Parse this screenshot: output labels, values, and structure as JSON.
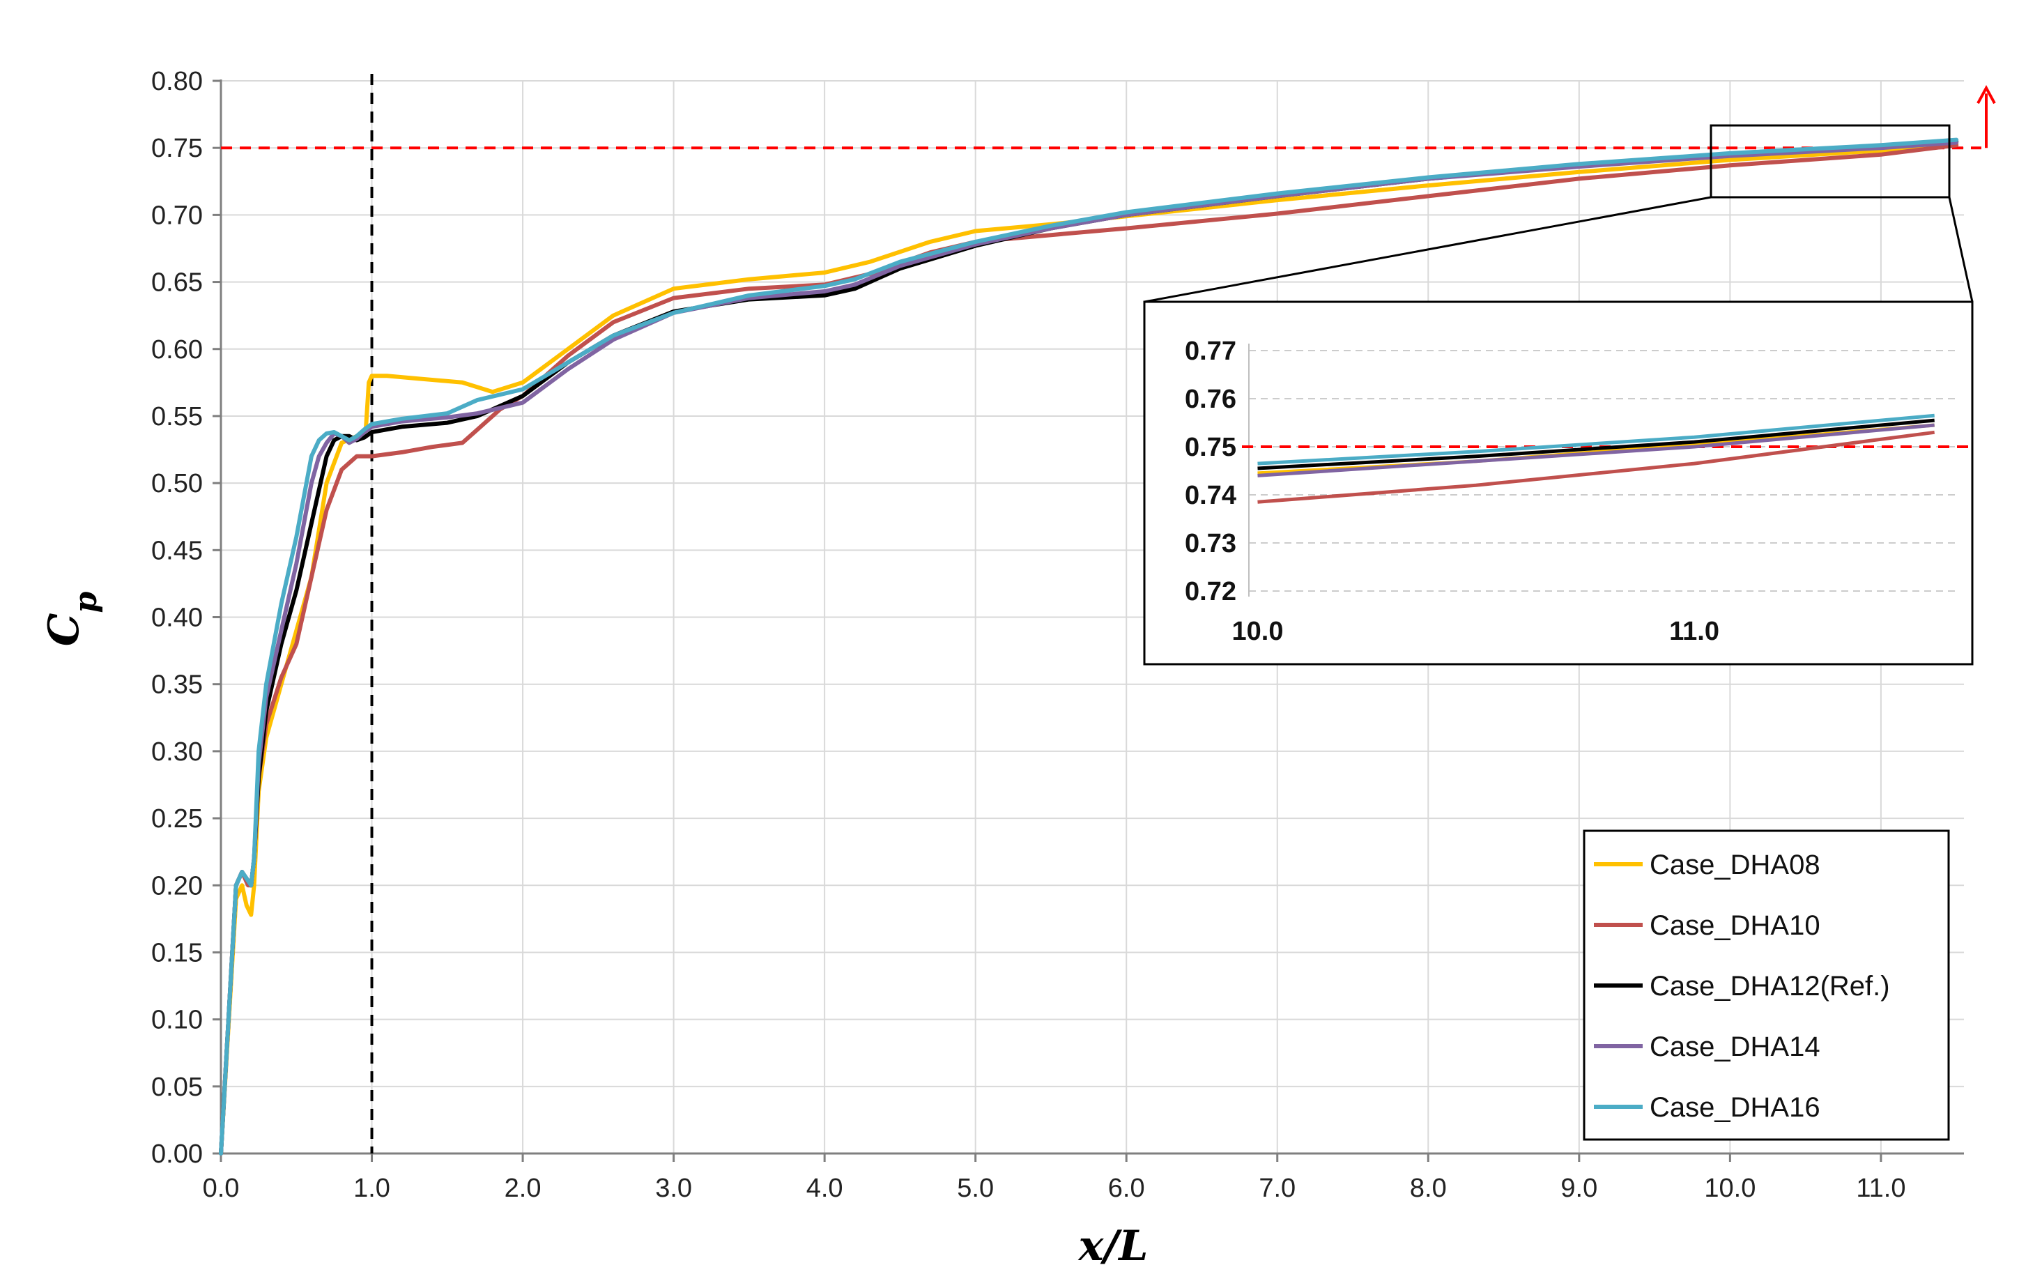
{
  "chart_data": [
    {
      "type": "line",
      "xlabel": "x/L",
      "ylabel": "Cp",
      "xlim": [
        0,
        11.55
      ],
      "ylim": [
        0,
        0.8
      ],
      "x_ticks": [
        "0.0",
        "1.0",
        "2.0",
        "3.0",
        "4.0",
        "5.0",
        "6.0",
        "7.0",
        "8.0",
        "9.0",
        "10.0",
        "11.0"
      ],
      "y_ticks": [
        "0.00",
        "0.05",
        "0.10",
        "0.15",
        "0.20",
        "0.25",
        "0.30",
        "0.35",
        "0.40",
        "0.45",
        "0.50",
        "0.55",
        "0.60",
        "0.65",
        "0.70",
        "0.75",
        "0.80"
      ],
      "grid": true,
      "legend_position": "bottom-right",
      "reference_lines": [
        {
          "orientation": "horizontal",
          "value": 0.75,
          "color": "#ff0000",
          "style": "dashed"
        },
        {
          "orientation": "vertical",
          "value": 1.0,
          "color": "#000000",
          "style": "dashed"
        }
      ],
      "series": [
        {
          "name": "Case_DHA08",
          "color": "#ffc000",
          "x": [
            0,
            0.1,
            0.14,
            0.17,
            0.2,
            0.22,
            0.25,
            0.3,
            0.4,
            0.5,
            0.6,
            0.7,
            0.8,
            0.9,
            0.96,
            0.98,
            1.0,
            1.1,
            1.3,
            1.6,
            1.8,
            2.0,
            2.3,
            2.6,
            3.0,
            3.5,
            4.0,
            4.3,
            4.7,
            5.0,
            5.5,
            6.0,
            7.0,
            8.0,
            9.0,
            10.0,
            11.0,
            11.5
          ],
          "y": [
            0,
            0.19,
            0.2,
            0.185,
            0.178,
            0.2,
            0.27,
            0.31,
            0.35,
            0.39,
            0.43,
            0.5,
            0.53,
            0.535,
            0.54,
            0.575,
            0.58,
            0.58,
            0.578,
            0.575,
            0.568,
            0.575,
            0.6,
            0.625,
            0.645,
            0.652,
            0.657,
            0.665,
            0.68,
            0.688,
            0.693,
            0.699,
            0.711,
            0.722,
            0.732,
            0.741,
            0.748,
            0.753
          ]
        },
        {
          "name": "Case_DHA10",
          "color": "#c0504d",
          "x": [
            0,
            0.1,
            0.14,
            0.18,
            0.2,
            0.22,
            0.25,
            0.3,
            0.4,
            0.5,
            0.6,
            0.7,
            0.8,
            0.9,
            1.0,
            1.2,
            1.4,
            1.6,
            1.7,
            1.85,
            2.0,
            2.3,
            2.6,
            3.0,
            3.5,
            4.0,
            4.3,
            4.7,
            5.0,
            5.5,
            6.0,
            7.0,
            8.0,
            9.0,
            10.0,
            11.0,
            11.5
          ],
          "y": [
            0,
            0.2,
            0.21,
            0.2,
            0.2,
            0.22,
            0.28,
            0.32,
            0.355,
            0.38,
            0.43,
            0.48,
            0.51,
            0.52,
            0.52,
            0.523,
            0.527,
            0.53,
            0.54,
            0.555,
            0.565,
            0.595,
            0.62,
            0.638,
            0.645,
            0.648,
            0.656,
            0.672,
            0.68,
            0.685,
            0.69,
            0.701,
            0.714,
            0.727,
            0.737,
            0.745,
            0.752
          ]
        },
        {
          "name": "Case_DHA12(Ref.)",
          "color": "#000000",
          "x": [
            0,
            0.1,
            0.14,
            0.17,
            0.2,
            0.22,
            0.25,
            0.3,
            0.4,
            0.5,
            0.6,
            0.7,
            0.75,
            0.8,
            0.85,
            0.9,
            0.95,
            1.0,
            1.2,
            1.5,
            1.7,
            2.0,
            2.3,
            2.6,
            3.0,
            3.5,
            4.0,
            4.2,
            4.5,
            5.0,
            5.5,
            6.0,
            7.0,
            8.0,
            9.0,
            10.0,
            11.0,
            11.5
          ],
          "y": [
            0,
            0.2,
            0.21,
            0.205,
            0.2,
            0.22,
            0.28,
            0.33,
            0.38,
            0.42,
            0.47,
            0.52,
            0.532,
            0.535,
            0.535,
            0.532,
            0.534,
            0.538,
            0.542,
            0.545,
            0.55,
            0.565,
            0.59,
            0.61,
            0.628,
            0.637,
            0.64,
            0.645,
            0.66,
            0.677,
            0.69,
            0.7,
            0.714,
            0.727,
            0.737,
            0.745,
            0.751,
            0.755
          ]
        },
        {
          "name": "Case_DHA14",
          "color": "#8064a2",
          "x": [
            0,
            0.1,
            0.14,
            0.17,
            0.2,
            0.22,
            0.25,
            0.3,
            0.4,
            0.5,
            0.6,
            0.65,
            0.7,
            0.75,
            0.8,
            0.85,
            0.9,
            0.95,
            1.0,
            1.2,
            1.5,
            1.7,
            2.0,
            2.3,
            2.6,
            3.0,
            3.5,
            4.0,
            4.2,
            4.5,
            5.0,
            5.5,
            6.0,
            7.0,
            8.0,
            9.0,
            10.0,
            11.0,
            11.5
          ],
          "y": [
            0,
            0.2,
            0.21,
            0.205,
            0.2,
            0.22,
            0.29,
            0.34,
            0.39,
            0.44,
            0.5,
            0.52,
            0.53,
            0.537,
            0.535,
            0.53,
            0.533,
            0.538,
            0.542,
            0.546,
            0.549,
            0.552,
            0.56,
            0.585,
            0.607,
            0.627,
            0.638,
            0.643,
            0.648,
            0.662,
            0.678,
            0.69,
            0.7,
            0.714,
            0.727,
            0.736,
            0.744,
            0.75,
            0.754
          ]
        },
        {
          "name": "Case_DHA16",
          "color": "#4bacc6",
          "x": [
            0,
            0.1,
            0.14,
            0.17,
            0.2,
            0.22,
            0.25,
            0.3,
            0.4,
            0.5,
            0.6,
            0.65,
            0.7,
            0.75,
            0.8,
            0.85,
            0.9,
            0.95,
            1.0,
            1.2,
            1.5,
            1.7,
            2.0,
            2.3,
            2.6,
            3.0,
            3.5,
            4.0,
            4.2,
            4.5,
            5.0,
            5.5,
            6.0,
            7.0,
            8.0,
            9.0,
            10.0,
            11.0,
            11.5
          ],
          "y": [
            0,
            0.2,
            0.21,
            0.205,
            0.2,
            0.22,
            0.3,
            0.35,
            0.41,
            0.46,
            0.52,
            0.532,
            0.537,
            0.538,
            0.535,
            0.532,
            0.535,
            0.54,
            0.544,
            0.548,
            0.552,
            0.562,
            0.57,
            0.59,
            0.61,
            0.627,
            0.64,
            0.647,
            0.652,
            0.665,
            0.68,
            0.692,
            0.702,
            0.716,
            0.728,
            0.738,
            0.746,
            0.752,
            0.756
          ]
        }
      ]
    },
    {
      "type": "line",
      "xlim": [
        9.98,
        11.6
      ],
      "ylim": [
        0.72,
        0.77
      ],
      "x_ticks": [
        "10.0",
        "11.0"
      ],
      "y_ticks": [
        "0.72",
        "0.73",
        "0.74",
        "0.75",
        "0.76",
        "0.77"
      ],
      "grid": true,
      "reference_lines": [
        {
          "orientation": "horizontal",
          "value": 0.75,
          "color": "#ff0000",
          "style": "dashed"
        }
      ],
      "series": [
        {
          "name": "Case_DHA08",
          "color": "#ffc000",
          "x": [
            10.0,
            10.5,
            11.0,
            11.55
          ],
          "y": [
            0.7445,
            0.747,
            0.7505,
            0.7545
          ]
        },
        {
          "name": "Case_DHA10",
          "color": "#c0504d",
          "x": [
            10.0,
            10.5,
            11.0,
            11.55
          ],
          "y": [
            0.7385,
            0.742,
            0.7465,
            0.753
          ]
        },
        {
          "name": "Case_DHA12(Ref.)",
          "color": "#000000",
          "x": [
            10.0,
            10.5,
            11.0,
            11.55
          ],
          "y": [
            0.7455,
            0.748,
            0.751,
            0.7555
          ]
        },
        {
          "name": "Case_DHA14",
          "color": "#8064a2",
          "x": [
            10.0,
            10.5,
            11.0,
            11.55
          ],
          "y": [
            0.744,
            0.747,
            0.75,
            0.7545
          ]
        },
        {
          "name": "Case_DHA16",
          "color": "#4bacc6",
          "x": [
            10.0,
            10.5,
            11.0,
            11.55
          ],
          "y": [
            0.7465,
            0.749,
            0.752,
            0.7565
          ]
        }
      ]
    }
  ]
}
